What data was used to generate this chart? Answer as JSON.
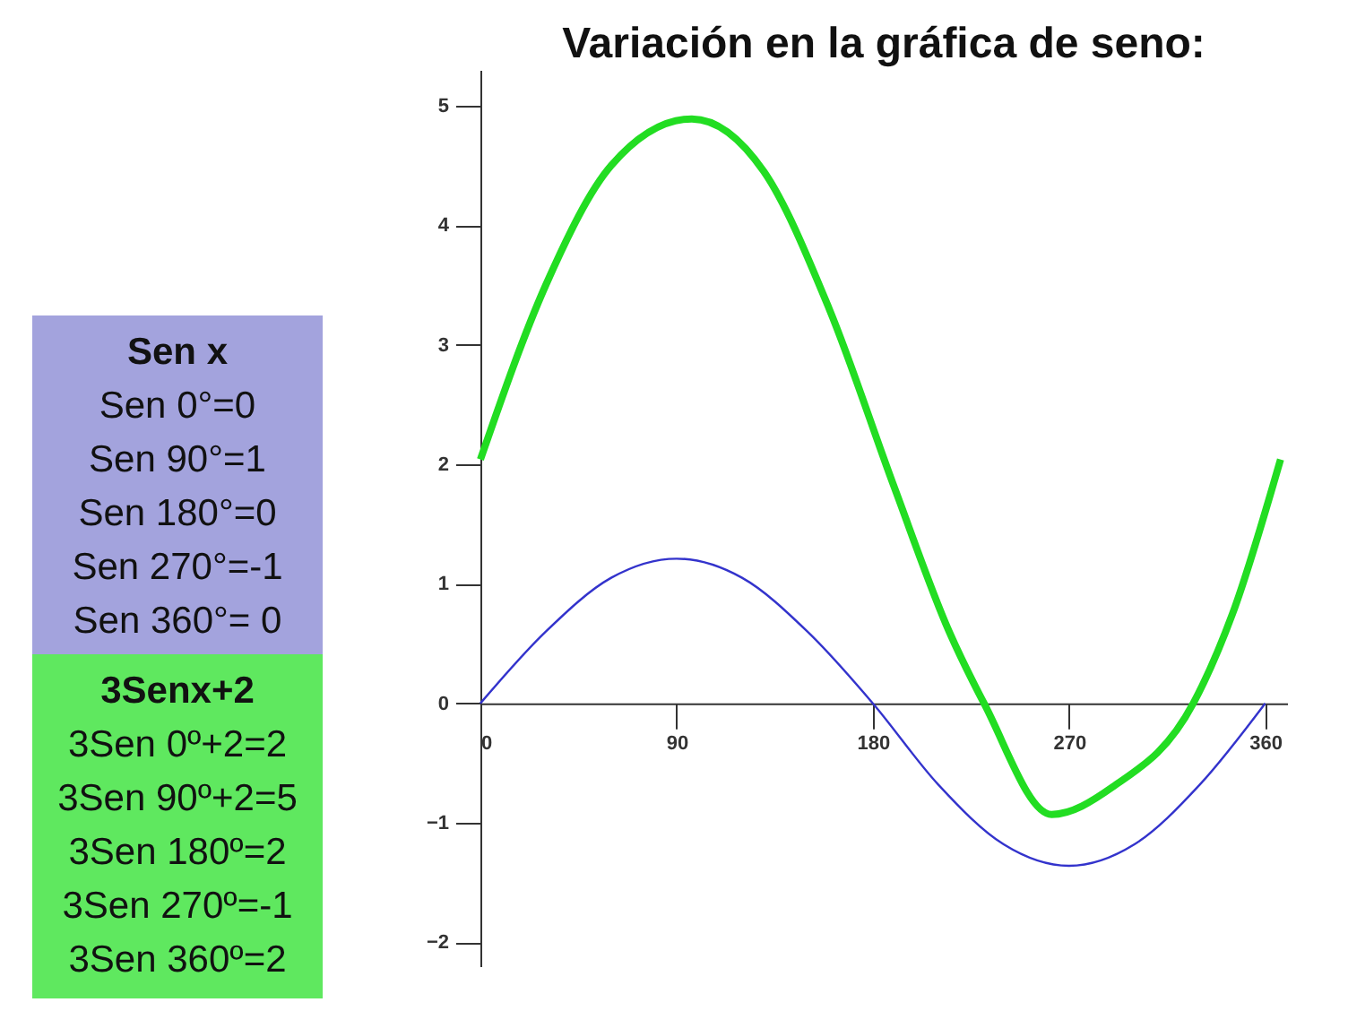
{
  "chart_data": {
    "type": "line",
    "title": "Variación en la gráfica de seno:",
    "annotations": [
      "Sen x\nSen 0°=0\nSen 90°=1\nSen 180°=0\nSen 270°=-1\nSen 360°= 0",
      "3Senx+2\n3Sen 0º+2=2\n3Sen 90º+2=5\n3Sen 180º=2\n3Sen 270º=-1\n3Sen 360º=2"
    ],
    "series": [
      {
        "color": "#3333cc",
        "x": [
          0,
          30,
          60,
          90,
          120,
          150,
          180,
          210,
          240,
          270,
          300,
          330,
          360
        ],
        "values": [
          0,
          0.6,
          1.05,
          1.21,
          1.05,
          0.6,
          0,
          -0.68,
          -1.18,
          -1.36,
          -1.18,
          -0.68,
          0
        ]
      },
      {
        "color": "#22dd22",
        "x": [
          0,
          30,
          60,
          97,
          130,
          160,
          190,
          215,
          231,
          262,
          290,
          327,
          345,
          367
        ],
        "values": [
          2.04,
          3.5,
          4.5,
          4.89,
          4.45,
          3.3,
          1.8,
          0.6,
          0,
          -0.93,
          -0.7,
          0,
          0.75,
          2.04
        ]
      }
    ],
    "xlim": [
      0,
      370
    ],
    "xticks": [
      0,
      90,
      180,
      270,
      360
    ],
    "ylim": [
      -2.2,
      5.3
    ],
    "yticks": [
      -2,
      -1,
      0,
      1,
      2,
      3,
      4,
      5
    ],
    "legend": false,
    "grid": false
  }
}
